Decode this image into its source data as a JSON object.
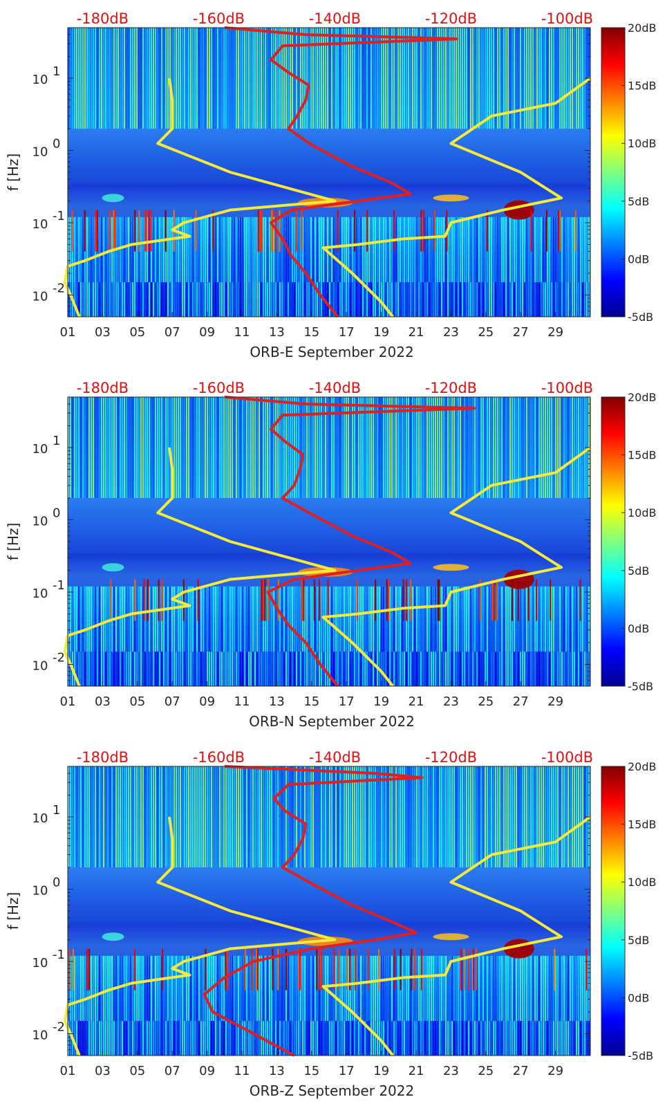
{
  "chart_data": [
    {
      "type": "heatmap",
      "station": "ORB-E",
      "xlabel": "ORB-E September 2022",
      "ylabel": "f [Hz]",
      "x_tick_labels": [
        "01",
        "03",
        "05",
        "07",
        "09",
        "11",
        "13",
        "15",
        "17",
        "19",
        "21",
        "23",
        "25",
        "27",
        "29"
      ],
      "x_tick_values": [
        1,
        3,
        5,
        7,
        9,
        11,
        13,
        15,
        17,
        19,
        21,
        23,
        25,
        27,
        29
      ],
      "xlim": [
        1,
        31
      ],
      "y_tick_labels": [
        "10",
        "10",
        "10",
        "10"
      ],
      "y_tick_exponents": [
        "-2",
        "-1",
        "0",
        "1"
      ],
      "y_tick_values": [
        0.01,
        0.1,
        1,
        10
      ],
      "ylim": [
        0.005,
        50
      ],
      "y_scale": "log",
      "top_axis_labels": [
        "-180dB",
        "-160dB",
        "-140dB",
        "-120dB",
        "-100dB"
      ],
      "top_axis_values": [
        -180,
        -160,
        -140,
        -120,
        -100
      ],
      "top_axis_range": [
        -186,
        -96
      ],
      "colorbar": {
        "labels": [
          "20dB",
          "15dB",
          "10dB",
          "5dB",
          "0dB",
          "-5dB"
        ],
        "values": [
          20,
          15,
          10,
          5,
          0,
          -5
        ],
        "range": [
          -5,
          20
        ],
        "colormap": "jet"
      },
      "median_psd_red": {
        "color": "#e02020",
        "points": [
          {
            "f": 0.005,
            "db": -139.5
          },
          {
            "f": 0.01,
            "db": -142.5
          },
          {
            "f": 0.02,
            "db": -145.0
          },
          {
            "f": 0.035,
            "db": -147.5
          },
          {
            "f": 0.06,
            "db": -149.0
          },
          {
            "f": 0.1,
            "db": -151.0
          },
          {
            "f": 0.15,
            "db": -147.5
          },
          {
            "f": 0.2,
            "db": -136.0
          },
          {
            "f": 0.25,
            "db": -127.0
          },
          {
            "f": 0.35,
            "db": -130.0
          },
          {
            "f": 0.6,
            "db": -137.0
          },
          {
            "f": 1.2,
            "db": -144.0
          },
          {
            "f": 2.0,
            "db": -148.0
          },
          {
            "f": 3.0,
            "db": -146.5
          },
          {
            "f": 5.0,
            "db": -145.0
          },
          {
            "f": 8.0,
            "db": -144.5
          },
          {
            "f": 12.0,
            "db": -148.0
          },
          {
            "f": 18.0,
            "db": -151.0
          },
          {
            "f": 28.0,
            "db": -149.0
          },
          {
            "f": 35.0,
            "db": -119.0
          },
          {
            "f": 40.0,
            "db": -145.0
          },
          {
            "f": 50.0,
            "db": -159.0
          }
        ]
      },
      "noise_model_low_yellow": {
        "color": "#f5e93a",
        "points": [
          {
            "f": 10.0,
            "db": -168.5
          },
          {
            "f": 5.0,
            "db": -168.0
          },
          {
            "f": 2.0,
            "db": -168.0
          },
          {
            "f": 1.25,
            "db": -170.5
          },
          {
            "f": 0.5,
            "db": -158.0
          },
          {
            "f": 0.2,
            "db": -140.0
          },
          {
            "f": 0.15,
            "db": -158.0
          },
          {
            "f": 0.1,
            "db": -166.0
          },
          {
            "f": 0.08,
            "db": -168.0
          },
          {
            "f": 0.065,
            "db": -165.0
          },
          {
            "f": 0.05,
            "db": -175.0
          },
          {
            "f": 0.04,
            "db": -179.0
          },
          {
            "f": 0.03,
            "db": -183.0
          },
          {
            "f": 0.025,
            "db": -186.0
          },
          {
            "f": 0.015,
            "db": -186.5
          },
          {
            "f": 0.01,
            "db": -185.5
          },
          {
            "f": 0.005,
            "db": -184.0
          }
        ]
      },
      "noise_model_high_yellow": {
        "color": "#f5e93a",
        "points": [
          {
            "f": 10.0,
            "db": -96.0
          },
          {
            "f": 4.5,
            "db": -102.0
          },
          {
            "f": 3.0,
            "db": -113.0
          },
          {
            "f": 1.25,
            "db": -120.0
          },
          {
            "f": 0.5,
            "db": -108.0
          },
          {
            "f": 0.22,
            "db": -101.0
          },
          {
            "f": 0.15,
            "db": -111.0
          },
          {
            "f": 0.1,
            "db": -120.0
          },
          {
            "f": 0.065,
            "db": -121.0
          },
          {
            "f": 0.06,
            "db": -128.0
          },
          {
            "f": 0.05,
            "db": -136.0
          },
          {
            "f": 0.045,
            "db": -142.0
          },
          {
            "f": 0.02,
            "db": -137.0
          },
          {
            "f": 0.008,
            "db": -132.0
          },
          {
            "f": 0.005,
            "db": -130.0
          }
        ]
      }
    },
    {
      "type": "heatmap",
      "station": "ORB-N",
      "xlabel": "ORB-N September 2022",
      "ylabel": "f [Hz]",
      "x_tick_labels": [
        "01",
        "03",
        "05",
        "07",
        "09",
        "11",
        "13",
        "15",
        "17",
        "19",
        "21",
        "23",
        "25",
        "27",
        "29"
      ],
      "x_tick_values": [
        1,
        3,
        5,
        7,
        9,
        11,
        13,
        15,
        17,
        19,
        21,
        23,
        25,
        27,
        29
      ],
      "xlim": [
        1,
        31
      ],
      "y_tick_labels": [
        "10",
        "10",
        "10",
        "10"
      ],
      "y_tick_exponents": [
        "-2",
        "-1",
        "0",
        "1"
      ],
      "y_tick_values": [
        0.01,
        0.1,
        1,
        10
      ],
      "ylim": [
        0.005,
        50
      ],
      "y_scale": "log",
      "top_axis_labels": [
        "-180dB",
        "-160dB",
        "-140dB",
        "-120dB",
        "-100dB"
      ],
      "top_axis_values": [
        -180,
        -160,
        -140,
        -120,
        -100
      ],
      "top_axis_range": [
        -186,
        -96
      ],
      "colorbar": {
        "labels": [
          "20dB",
          "15dB",
          "10dB",
          "5dB",
          "0dB",
          "-5dB"
        ],
        "values": [
          20,
          15,
          10,
          5,
          0,
          -5
        ],
        "range": [
          -5,
          20
        ],
        "colormap": "jet"
      },
      "median_psd_red": {
        "color": "#e02020",
        "points": [
          {
            "f": 0.005,
            "db": -139.5
          },
          {
            "f": 0.01,
            "db": -142.5
          },
          {
            "f": 0.02,
            "db": -145.0
          },
          {
            "f": 0.035,
            "db": -148.0
          },
          {
            "f": 0.06,
            "db": -150.0
          },
          {
            "f": 0.1,
            "db": -151.5
          },
          {
            "f": 0.15,
            "db": -147.0
          },
          {
            "f": 0.2,
            "db": -136.0
          },
          {
            "f": 0.25,
            "db": -127.0
          },
          {
            "f": 0.35,
            "db": -130.0
          },
          {
            "f": 0.6,
            "db": -137.0
          },
          {
            "f": 1.2,
            "db": -144.0
          },
          {
            "f": 2.0,
            "db": -149.0
          },
          {
            "f": 3.0,
            "db": -147.0
          },
          {
            "f": 5.0,
            "db": -146.0
          },
          {
            "f": 8.0,
            "db": -145.5
          },
          {
            "f": 12.0,
            "db": -148.5
          },
          {
            "f": 18.0,
            "db": -151.0
          },
          {
            "f": 28.0,
            "db": -149.0
          },
          {
            "f": 35.0,
            "db": -116.0
          },
          {
            "f": 40.0,
            "db": -145.0
          },
          {
            "f": 50.0,
            "db": -159.0
          }
        ]
      },
      "noise_model_low_yellow": {
        "color": "#f5e93a",
        "points": [
          {
            "f": 10.0,
            "db": -168.5
          },
          {
            "f": 5.0,
            "db": -168.0
          },
          {
            "f": 2.0,
            "db": -168.0
          },
          {
            "f": 1.25,
            "db": -170.5
          },
          {
            "f": 0.5,
            "db": -158.0
          },
          {
            "f": 0.2,
            "db": -140.0
          },
          {
            "f": 0.15,
            "db": -158.0
          },
          {
            "f": 0.1,
            "db": -166.0
          },
          {
            "f": 0.08,
            "db": -168.0
          },
          {
            "f": 0.065,
            "db": -165.0
          },
          {
            "f": 0.05,
            "db": -175.0
          },
          {
            "f": 0.04,
            "db": -179.0
          },
          {
            "f": 0.03,
            "db": -183.0
          },
          {
            "f": 0.025,
            "db": -186.0
          },
          {
            "f": 0.015,
            "db": -186.5
          },
          {
            "f": 0.01,
            "db": -185.5
          },
          {
            "f": 0.005,
            "db": -184.0
          }
        ]
      },
      "noise_model_high_yellow": {
        "color": "#f5e93a",
        "points": [
          {
            "f": 10.0,
            "db": -96.0
          },
          {
            "f": 4.5,
            "db": -102.0
          },
          {
            "f": 3.0,
            "db": -113.0
          },
          {
            "f": 1.25,
            "db": -120.0
          },
          {
            "f": 0.5,
            "db": -108.0
          },
          {
            "f": 0.22,
            "db": -101.0
          },
          {
            "f": 0.15,
            "db": -111.0
          },
          {
            "f": 0.1,
            "db": -120.0
          },
          {
            "f": 0.065,
            "db": -121.0
          },
          {
            "f": 0.06,
            "db": -128.0
          },
          {
            "f": 0.05,
            "db": -136.0
          },
          {
            "f": 0.045,
            "db": -142.0
          },
          {
            "f": 0.02,
            "db": -137.0
          },
          {
            "f": 0.008,
            "db": -132.0
          },
          {
            "f": 0.005,
            "db": -130.0
          }
        ]
      }
    },
    {
      "type": "heatmap",
      "station": "ORB-Z",
      "xlabel": "ORB-Z September 2022",
      "ylabel": "f [Hz]",
      "x_tick_labels": [
        "01",
        "03",
        "05",
        "07",
        "09",
        "11",
        "13",
        "15",
        "17",
        "19",
        "21",
        "23",
        "25",
        "27",
        "29"
      ],
      "x_tick_values": [
        1,
        3,
        5,
        7,
        9,
        11,
        13,
        15,
        17,
        19,
        21,
        23,
        25,
        27,
        29
      ],
      "xlim": [
        1,
        31
      ],
      "y_tick_labels": [
        "10",
        "10",
        "10",
        "10"
      ],
      "y_tick_exponents": [
        "-2",
        "-1",
        "0",
        "1"
      ],
      "y_tick_values": [
        0.01,
        0.1,
        1,
        10
      ],
      "ylim": [
        0.005,
        50
      ],
      "y_scale": "log",
      "top_axis_labels": [
        "-180dB",
        "-160dB",
        "-140dB",
        "-120dB",
        "-100dB"
      ],
      "top_axis_values": [
        -180,
        -160,
        -140,
        -120,
        -100
      ],
      "top_axis_range": [
        -186,
        -96
      ],
      "colorbar": {
        "labels": [
          "20dB",
          "15dB",
          "10dB",
          "5dB",
          "0dB",
          "-5dB"
        ],
        "values": [
          20,
          15,
          10,
          5,
          0,
          -5
        ],
        "range": [
          -5,
          20
        ],
        "colormap": "jet"
      },
      "median_psd_red": {
        "color": "#e02020",
        "points": [
          {
            "f": 0.005,
            "db": -147.0
          },
          {
            "f": 0.01,
            "db": -154.0
          },
          {
            "f": 0.02,
            "db": -161.0
          },
          {
            "f": 0.035,
            "db": -162.5
          },
          {
            "f": 0.06,
            "db": -159.0
          },
          {
            "f": 0.1,
            "db": -154.0
          },
          {
            "f": 0.15,
            "db": -144.0
          },
          {
            "f": 0.2,
            "db": -133.0
          },
          {
            "f": 0.25,
            "db": -126.0
          },
          {
            "f": 0.35,
            "db": -130.0
          },
          {
            "f": 0.6,
            "db": -137.0
          },
          {
            "f": 1.2,
            "db": -144.0
          },
          {
            "f": 2.0,
            "db": -149.0
          },
          {
            "f": 3.0,
            "db": -147.0
          },
          {
            "f": 5.0,
            "db": -145.5
          },
          {
            "f": 8.0,
            "db": -145.0
          },
          {
            "f": 12.0,
            "db": -148.5
          },
          {
            "f": 18.0,
            "db": -150.5
          },
          {
            "f": 28.0,
            "db": -148.0
          },
          {
            "f": 35.0,
            "db": -125.0
          },
          {
            "f": 40.0,
            "db": -133.0
          },
          {
            "f": 50.0,
            "db": -159.0
          }
        ]
      },
      "noise_model_low_yellow": {
        "color": "#f5e93a",
        "points": [
          {
            "f": 10.0,
            "db": -168.5
          },
          {
            "f": 5.0,
            "db": -168.0
          },
          {
            "f": 2.0,
            "db": -168.0
          },
          {
            "f": 1.25,
            "db": -170.5
          },
          {
            "f": 0.5,
            "db": -158.0
          },
          {
            "f": 0.2,
            "db": -140.0
          },
          {
            "f": 0.15,
            "db": -158.0
          },
          {
            "f": 0.1,
            "db": -166.0
          },
          {
            "f": 0.08,
            "db": -168.0
          },
          {
            "f": 0.065,
            "db": -165.0
          },
          {
            "f": 0.05,
            "db": -175.0
          },
          {
            "f": 0.04,
            "db": -179.0
          },
          {
            "f": 0.03,
            "db": -183.0
          },
          {
            "f": 0.025,
            "db": -186.0
          },
          {
            "f": 0.015,
            "db": -186.5
          },
          {
            "f": 0.01,
            "db": -185.5
          },
          {
            "f": 0.005,
            "db": -184.0
          }
        ]
      },
      "noise_model_high_yellow": {
        "color": "#f5e93a",
        "points": [
          {
            "f": 10.0,
            "db": -96.0
          },
          {
            "f": 4.5,
            "db": -102.0
          },
          {
            "f": 3.0,
            "db": -113.0
          },
          {
            "f": 1.25,
            "db": -120.0
          },
          {
            "f": 0.5,
            "db": -108.0
          },
          {
            "f": 0.22,
            "db": -101.0
          },
          {
            "f": 0.15,
            "db": -111.0
          },
          {
            "f": 0.1,
            "db": -120.0
          },
          {
            "f": 0.065,
            "db": -121.0
          },
          {
            "f": 0.06,
            "db": -128.0
          },
          {
            "f": 0.05,
            "db": -136.0
          },
          {
            "f": 0.045,
            "db": -142.0
          },
          {
            "f": 0.02,
            "db": -137.0
          },
          {
            "f": 0.008,
            "db": -132.0
          },
          {
            "f": 0.005,
            "db": -130.0
          }
        ]
      }
    }
  ]
}
